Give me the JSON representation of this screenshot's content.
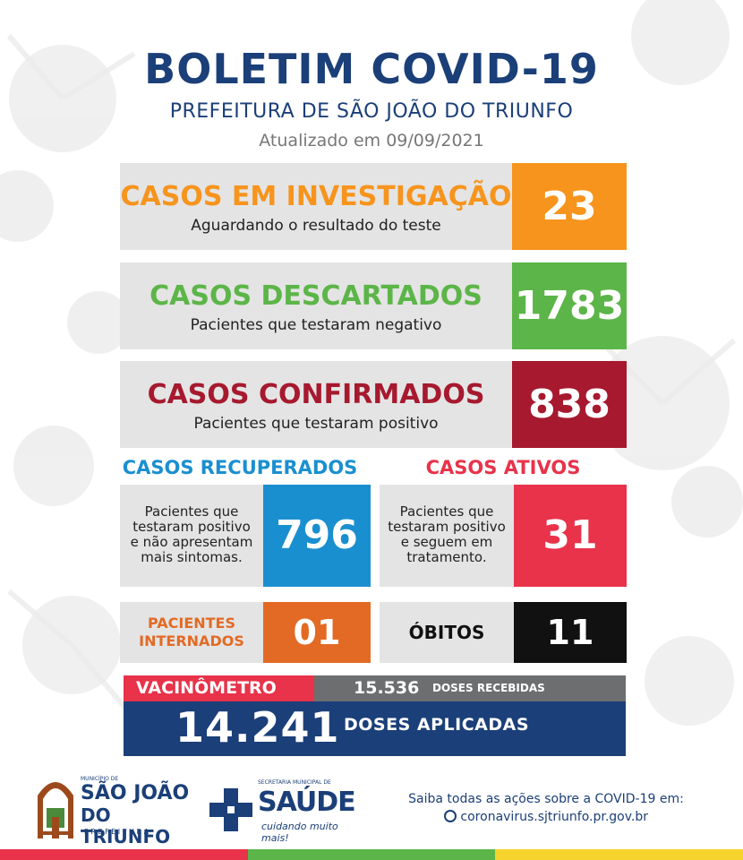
{
  "header": {
    "title": "BOLETIM COVID-19",
    "subtitle": "PREFEITURA DE SÃO JOÃO DO TRIUNFO",
    "updated": "Atualizado em 09/09/2021"
  },
  "investigacao": {
    "label": "CASOS EM INVESTIGAÇÃO",
    "desc": "Aguardando o resultado do teste",
    "value": "23",
    "color": "#f7941d"
  },
  "descartados": {
    "label": "CASOS DESCARTADOS",
    "desc": "Pacientes que testaram negativo",
    "value": "1783",
    "color": "#5cb548"
  },
  "confirmados": {
    "label": "CASOS CONFIRMADOS",
    "desc": "Pacientes que testaram positivo",
    "value": "838",
    "color": "#a6192e"
  },
  "recuperados": {
    "title": "CASOS RECUPERADOS",
    "desc_lines": [
      "Pacientes que",
      "testaram positivo",
      "e não apresentam",
      "mais sintomas."
    ],
    "value": "796",
    "color": "#1a8fd0"
  },
  "ativos": {
    "title": "CASOS ATIVOS",
    "desc_lines": [
      "Pacientes que",
      "testaram positivo",
      "e seguem em",
      "tratamento."
    ],
    "value": "31",
    "color": "#e8334a"
  },
  "internados": {
    "label_lines": [
      "PACIENTES",
      "INTERNADOS"
    ],
    "value": "01",
    "color": "#e36a24"
  },
  "obitos": {
    "label": "ÓBITOS",
    "value": "11",
    "color": "#111111"
  },
  "vacinometro": {
    "label": "VACINÔMETRO",
    "received_value": "15.536",
    "received_label": "DOSES RECEBIDAS",
    "applied_value": "14.241",
    "applied_label": "DOSES APLICADAS"
  },
  "footer": {
    "logo1_small": "MUNICÍPIO DE",
    "logo1_line1": "SÃO JOÃO",
    "logo1_line2": "DO TRIUNFO",
    "logo1_line3": "P R E F E I T U R A",
    "logo2_small": "SECRETARIA MUNICIPAL DE",
    "logo2_main": "SAÚDE",
    "logo2_slogan": "cuidando muito mais!",
    "info_text": "Saiba todas as ações sobre a COVID-19 em:",
    "url": "coronavirus.sjtriunfo.pr.gov.br"
  },
  "colors": {
    "navy": "#1b3f78",
    "orange": "#f7941d",
    "green": "#5cb548",
    "darkred": "#a6192e",
    "blue": "#1a8fd0",
    "pink": "#e8334a",
    "burnt_orange": "#e36a24",
    "grey_panel": "#e4e4e4",
    "bar": [
      "#e8334a",
      "#5cb548",
      "#f6d32d"
    ]
  }
}
